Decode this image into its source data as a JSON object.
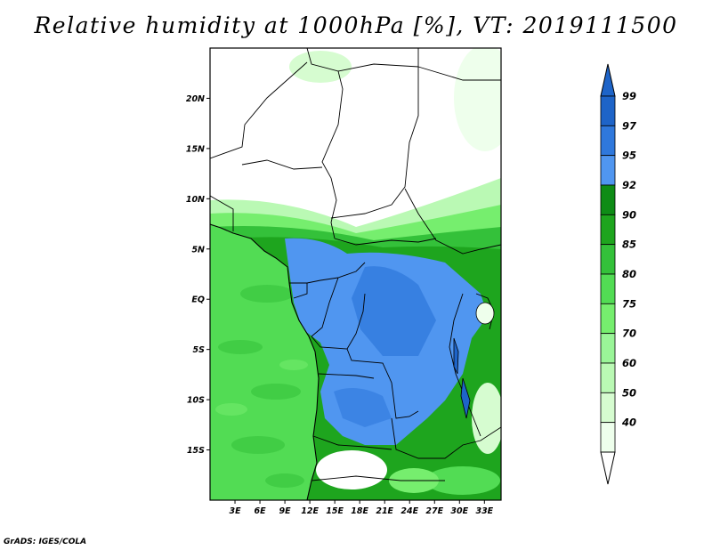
{
  "title": "Relative humidity at 1000hPa [%], VT: 2019111500",
  "credit": "GrADS: IGES/COLA",
  "map": {
    "lon_range": [
      0,
      35
    ],
    "lat_range": [
      -20,
      25
    ],
    "lat_ticks": [
      {
        "value": 20,
        "label": "20N"
      },
      {
        "value": 15,
        "label": "15N"
      },
      {
        "value": 10,
        "label": "10N"
      },
      {
        "value": 5,
        "label": "5N"
      },
      {
        "value": 0,
        "label": "EQ"
      },
      {
        "value": -5,
        "label": "5S"
      },
      {
        "value": -10,
        "label": "10S"
      },
      {
        "value": -15,
        "label": "15S"
      }
    ],
    "lon_ticks": [
      {
        "value": 3,
        "label": "3E"
      },
      {
        "value": 6,
        "label": "6E"
      },
      {
        "value": 9,
        "label": "9E"
      },
      {
        "value": 12,
        "label": "12E"
      },
      {
        "value": 15,
        "label": "15E"
      },
      {
        "value": 18,
        "label": "18E"
      },
      {
        "value": 21,
        "label": "21E"
      },
      {
        "value": 24,
        "label": "24E"
      },
      {
        "value": 27,
        "label": "27E"
      },
      {
        "value": 30,
        "label": "30E"
      },
      {
        "value": 33,
        "label": "33E"
      }
    ]
  },
  "colorbar": {
    "levels": [
      {
        "label": "99",
        "color": "#1e64c8"
      },
      {
        "label": "97",
        "color": "#2f78dc"
      },
      {
        "label": "95",
        "color": "#5096f0"
      },
      {
        "label": "92",
        "color": "#0e8c16"
      },
      {
        "label": "90",
        "color": "#1ea51e"
      },
      {
        "label": "85",
        "color": "#34c13a"
      },
      {
        "label": "80",
        "color": "#52dc54"
      },
      {
        "label": "75",
        "color": "#76ee6e"
      },
      {
        "label": "70",
        "color": "#9af598"
      },
      {
        "label": "60",
        "color": "#baf9b4"
      },
      {
        "label": "50",
        "color": "#d6fcd0"
      },
      {
        "label": "40",
        "color": "#eeffec"
      }
    ],
    "top_arrow_color": "#1e64c8",
    "bottom_arrow_color": "#ffffff"
  }
}
